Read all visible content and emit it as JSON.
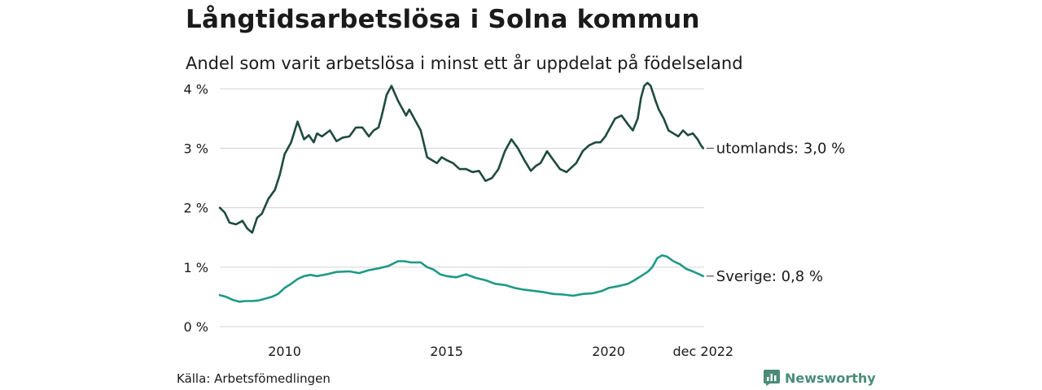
{
  "title": "Långtidsarbetslösa i Solna kommun",
  "subtitle": "Andel som varit arbetslösa i minst ett år uppdelat på födelseland",
  "source": "Källa: Arbetsfömedlingen",
  "brand": "Newsworthy",
  "colors": {
    "utomlands": "#1f4a3f",
    "sverige": "#1e9985",
    "grid": "#d9d9d9",
    "brand": "#4a8c78"
  },
  "chart_data": {
    "type": "line",
    "title": "Långtidsarbetslösa i Solna kommun",
    "ylabel": "",
    "xlabel": "",
    "ylim": [
      0,
      4.1
    ],
    "xlim": [
      2008.0,
      2022.95
    ],
    "grid": true,
    "yticks": [
      {
        "value": 0,
        "label": "0 %"
      },
      {
        "value": 1,
        "label": "1 %"
      },
      {
        "value": 2,
        "label": "2 %"
      },
      {
        "value": 3,
        "label": "3 %"
      },
      {
        "value": 4,
        "label": "4 %"
      }
    ],
    "xticks": [
      {
        "value": 2010,
        "label": "2010"
      },
      {
        "value": 2015,
        "label": "2015"
      },
      {
        "value": 2020,
        "label": "2020"
      },
      {
        "value": 2022.92,
        "label": "dec 2022"
      }
    ],
    "series": [
      {
        "name": "utomlands",
        "end_label": "utomlands: 3,0 %",
        "x": [
          2008.0,
          2008.15,
          2008.3,
          2008.5,
          2008.7,
          2008.85,
          2009.0,
          2009.15,
          2009.3,
          2009.5,
          2009.7,
          2009.85,
          2010.0,
          2010.2,
          2010.4,
          2010.6,
          2010.75,
          2010.9,
          2011.0,
          2011.15,
          2011.4,
          2011.6,
          2011.8,
          2012.0,
          2012.2,
          2012.4,
          2012.6,
          2012.75,
          2012.9,
          2013.0,
          2013.15,
          2013.3,
          2013.5,
          2013.7,
          2013.75,
          2013.85,
          2014.0,
          2014.2,
          2014.4,
          2014.55,
          2014.7,
          2014.85,
          2015.0,
          2015.2,
          2015.4,
          2015.6,
          2015.8,
          2016.0,
          2016.2,
          2016.4,
          2016.6,
          2016.8,
          2017.0,
          2017.2,
          2017.4,
          2017.6,
          2017.75,
          2017.9,
          2018.1,
          2018.3,
          2018.5,
          2018.7,
          2018.9,
          2019.0,
          2019.2,
          2019.4,
          2019.6,
          2019.75,
          2019.9,
          2020.0,
          2020.2,
          2020.4,
          2020.6,
          2020.75,
          2020.9,
          2021.0,
          2021.1,
          2021.2,
          2021.3,
          2021.45,
          2021.55,
          2021.7,
          2021.85,
          2022.0,
          2022.15,
          2022.3,
          2022.45,
          2022.6,
          2022.75,
          2022.85,
          2022.92
        ],
        "values": [
          2.0,
          1.92,
          1.75,
          1.72,
          1.78,
          1.65,
          1.58,
          1.83,
          1.9,
          2.15,
          2.3,
          2.55,
          2.9,
          3.1,
          3.45,
          3.15,
          3.22,
          3.1,
          3.25,
          3.2,
          3.3,
          3.12,
          3.18,
          3.2,
          3.35,
          3.35,
          3.2,
          3.3,
          3.35,
          3.55,
          3.9,
          4.05,
          3.8,
          3.6,
          3.55,
          3.65,
          3.5,
          3.3,
          2.85,
          2.8,
          2.75,
          2.85,
          2.8,
          2.75,
          2.65,
          2.65,
          2.6,
          2.62,
          2.45,
          2.5,
          2.65,
          2.95,
          3.15,
          3.0,
          2.8,
          2.62,
          2.7,
          2.75,
          2.95,
          2.8,
          2.65,
          2.6,
          2.7,
          2.75,
          2.95,
          3.05,
          3.1,
          3.1,
          3.2,
          3.3,
          3.5,
          3.55,
          3.4,
          3.3,
          3.5,
          3.85,
          4.05,
          4.1,
          4.05,
          3.8,
          3.65,
          3.5,
          3.3,
          3.25,
          3.2,
          3.3,
          3.22,
          3.25,
          3.15,
          3.05,
          3.0
        ],
        "color": "#1f4a3f"
      },
      {
        "name": "Sverige",
        "end_label": "Sverige: 0,8 %",
        "x": [
          2008.0,
          2008.2,
          2008.4,
          2008.6,
          2008.8,
          2009.0,
          2009.2,
          2009.4,
          2009.6,
          2009.8,
          2010.0,
          2010.2,
          2010.4,
          2010.6,
          2010.8,
          2011.0,
          2011.3,
          2011.6,
          2012.0,
          2012.3,
          2012.6,
          2012.9,
          2013.2,
          2013.5,
          2013.7,
          2013.9,
          2014.2,
          2014.4,
          2014.6,
          2014.8,
          2015.0,
          2015.3,
          2015.6,
          2015.9,
          2016.2,
          2016.5,
          2016.8,
          2017.1,
          2017.4,
          2017.7,
          2018.0,
          2018.3,
          2018.6,
          2018.9,
          2019.2,
          2019.5,
          2019.8,
          2020.0,
          2020.3,
          2020.6,
          2020.8,
          2021.0,
          2021.2,
          2021.35,
          2021.5,
          2021.65,
          2021.8,
          2022.0,
          2022.2,
          2022.4,
          2022.6,
          2022.8,
          2022.92
        ],
        "values": [
          0.53,
          0.5,
          0.45,
          0.42,
          0.43,
          0.43,
          0.44,
          0.47,
          0.5,
          0.55,
          0.65,
          0.72,
          0.8,
          0.85,
          0.87,
          0.85,
          0.88,
          0.92,
          0.93,
          0.9,
          0.95,
          0.98,
          1.02,
          1.1,
          1.1,
          1.08,
          1.08,
          1.0,
          0.96,
          0.88,
          0.85,
          0.83,
          0.88,
          0.82,
          0.78,
          0.72,
          0.7,
          0.65,
          0.62,
          0.6,
          0.58,
          0.55,
          0.54,
          0.52,
          0.55,
          0.56,
          0.6,
          0.65,
          0.68,
          0.72,
          0.78,
          0.85,
          0.92,
          1.0,
          1.15,
          1.2,
          1.18,
          1.1,
          1.05,
          0.97,
          0.93,
          0.88,
          0.85
        ],
        "color": "#1e9985"
      }
    ]
  }
}
